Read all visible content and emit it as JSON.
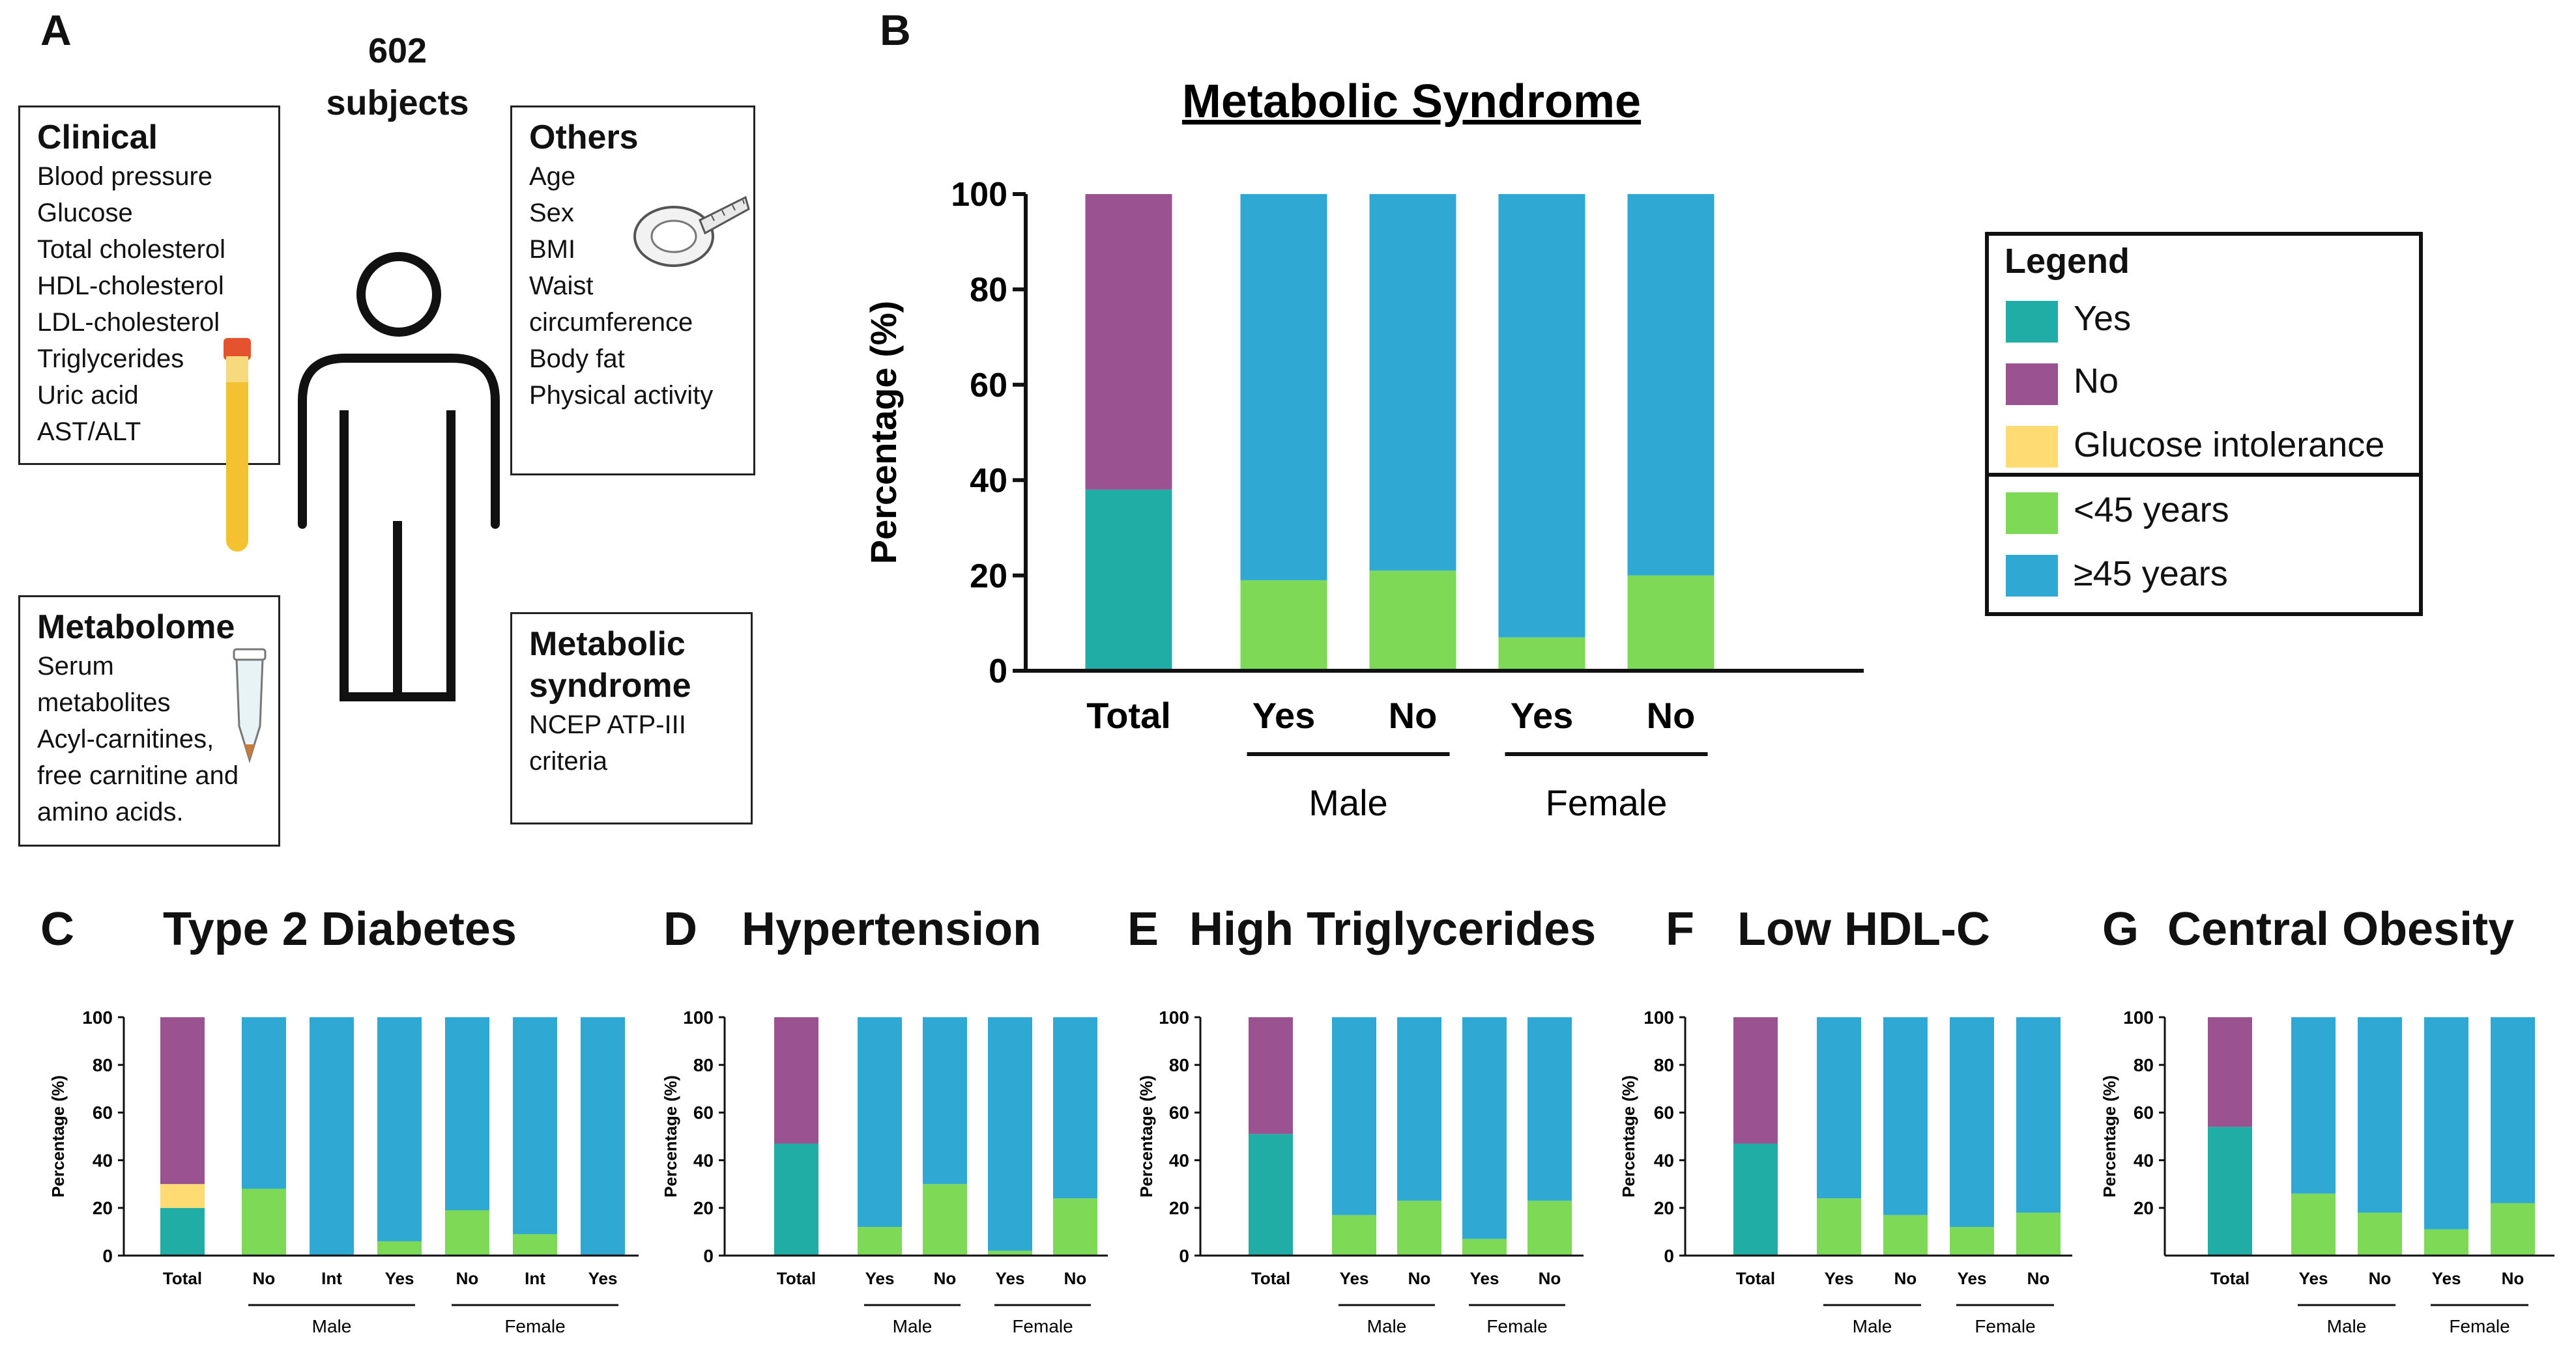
{
  "panelA": {
    "letter": "A",
    "subjects": "602 subjects",
    "clinical": {
      "title": "Clinical",
      "items": [
        "Blood pressure",
        "Glucose",
        "Total cholesterol",
        "HDL-cholesterol",
        "LDL-cholesterol",
        "Triglycerides",
        "Uric acid",
        "AST/ALT"
      ]
    },
    "others": {
      "title": "Others",
      "items": [
        "Age",
        "Sex",
        "BMI",
        "Waist",
        "circumference",
        "Body fat",
        "Physical activity"
      ]
    },
    "metabolome": {
      "title": "Metabolome",
      "items": [
        "Serum",
        "metabolites",
        "Acyl-carnitines,",
        "free carnitine and",
        "amino acids."
      ]
    },
    "syndrome": {
      "title_line1": "Metabolic",
      "title_line2": "syndrome",
      "items": [
        "NCEP ATP-III",
        "criteria"
      ]
    }
  },
  "legend": {
    "title": "Legend",
    "entries": [
      {
        "label": "Yes",
        "color": "#1FADA6"
      },
      {
        "label": "No",
        "color": "#9B5291"
      },
      {
        "label": "Glucose intolerance",
        "color": "#FFDC73"
      },
      {
        "label": "<45 years",
        "color": "#7ED957"
      },
      {
        "label": "≥45 years",
        "color": "#2FA9D4"
      }
    ]
  },
  "colors": {
    "yes": "#1FADA6",
    "no": "#9B5291",
    "gi": "#FFDC73",
    "young": "#7ED957",
    "old": "#2FA9D4"
  },
  "chart_data": [
    {
      "id": "B",
      "letter": "B",
      "type": "bar",
      "title": "Metabolic Syndrome",
      "ylabel": "Percentage (%)",
      "ylim": [
        0,
        100
      ],
      "yticks": [
        0,
        20,
        40,
        60,
        80,
        100
      ],
      "categories": [
        "Total",
        "Yes",
        "No",
        "Yes",
        "No"
      ],
      "groups": [
        {
          "label": "Male",
          "from": 1,
          "to": 2
        },
        {
          "label": "Female",
          "from": 3,
          "to": 4
        }
      ],
      "total": {
        "yes": 38,
        "gi": 0,
        "no": 62
      },
      "series": [
        {
          "name": "<45 years",
          "values": [
            null,
            19,
            21,
            7,
            20
          ]
        },
        {
          "name": "≥45 years",
          "values": [
            null,
            81,
            79,
            93,
            80
          ]
        }
      ]
    },
    {
      "id": "C",
      "letter": "C",
      "type": "bar",
      "title": "Type 2 Diabetes",
      "ylabel": "Percentage (%)",
      "ylim": [
        0,
        100
      ],
      "yticks": [
        0,
        20,
        40,
        60,
        80,
        100
      ],
      "categories": [
        "Total",
        "No",
        "Int",
        "Yes",
        "No",
        "Int",
        "Yes"
      ],
      "groups": [
        {
          "label": "Male",
          "from": 1,
          "to": 3
        },
        {
          "label": "Female",
          "from": 4,
          "to": 6
        }
      ],
      "total": {
        "yes": 20,
        "gi": 10,
        "no": 70
      },
      "series": [
        {
          "name": "<45 years",
          "values": [
            null,
            28,
            0,
            6,
            19,
            9,
            0
          ]
        },
        {
          "name": "≥45 years",
          "values": [
            null,
            72,
            100,
            94,
            81,
            91,
            100
          ]
        }
      ]
    },
    {
      "id": "D",
      "letter": "D",
      "type": "bar",
      "title": "Hypertension",
      "ylabel": "Percentage (%)",
      "ylim": [
        0,
        100
      ],
      "yticks": [
        0,
        20,
        40,
        60,
        80,
        100
      ],
      "categories": [
        "Total",
        "Yes",
        "No",
        "Yes",
        "No"
      ],
      "groups": [
        {
          "label": "Male",
          "from": 1,
          "to": 2
        },
        {
          "label": "Female",
          "from": 3,
          "to": 4
        }
      ],
      "total": {
        "yes": 47,
        "gi": 0,
        "no": 53
      },
      "series": [
        {
          "name": "<45 years",
          "values": [
            null,
            12,
            30,
            2,
            24
          ]
        },
        {
          "name": "≥45 years",
          "values": [
            null,
            88,
            70,
            98,
            76
          ]
        }
      ]
    },
    {
      "id": "E",
      "letter": "E",
      "type": "bar",
      "title": "High Triglycerides",
      "ylabel": "Percentage (%)",
      "ylim": [
        0,
        100
      ],
      "yticks": [
        0,
        20,
        40,
        60,
        80,
        100
      ],
      "categories": [
        "Total",
        "Yes",
        "No",
        "Yes",
        "No"
      ],
      "groups": [
        {
          "label": "Male",
          "from": 1,
          "to": 2
        },
        {
          "label": "Female",
          "from": 3,
          "to": 4
        }
      ],
      "total": {
        "yes": 51,
        "gi": 0,
        "no": 49
      },
      "series": [
        {
          "name": "<45 years",
          "values": [
            null,
            17,
            23,
            7,
            23
          ]
        },
        {
          "name": "≥45 years",
          "values": [
            null,
            83,
            77,
            93,
            77
          ]
        }
      ]
    },
    {
      "id": "F",
      "letter": "F",
      "type": "bar",
      "title": "Low HDL-C",
      "ylabel": "Percentage (%)",
      "ylim": [
        0,
        100
      ],
      "yticks": [
        0,
        20,
        40,
        60,
        80,
        100
      ],
      "categories": [
        "Total",
        "Yes",
        "No",
        "Yes",
        "No"
      ],
      "groups": [
        {
          "label": "Male",
          "from": 1,
          "to": 2
        },
        {
          "label": "Female",
          "from": 3,
          "to": 4
        }
      ],
      "total": {
        "yes": 47,
        "gi": 0,
        "no": 53
      },
      "series": [
        {
          "name": "<45 years",
          "values": [
            null,
            24,
            17,
            12,
            18
          ]
        },
        {
          "name": "≥45 years",
          "values": [
            null,
            76,
            83,
            88,
            82
          ]
        }
      ]
    },
    {
      "id": "G",
      "letter": "G",
      "type": "bar",
      "title": "Central Obesity",
      "ylabel": "Percentage (%)",
      "ylim": [
        0,
        100
      ],
      "yticks": [
        20,
        40,
        60,
        80,
        100
      ],
      "categories": [
        "Total",
        "Yes",
        "No",
        "Yes",
        "No"
      ],
      "groups": [
        {
          "label": "Male",
          "from": 1,
          "to": 2
        },
        {
          "label": "Female",
          "from": 3,
          "to": 4
        }
      ],
      "total": {
        "yes": 54,
        "gi": 0,
        "no": 46
      },
      "series": [
        {
          "name": "<45 years",
          "values": [
            null,
            26,
            18,
            11,
            22
          ]
        },
        {
          "name": "≥45 years",
          "values": [
            null,
            74,
            82,
            89,
            78
          ]
        }
      ]
    }
  ]
}
